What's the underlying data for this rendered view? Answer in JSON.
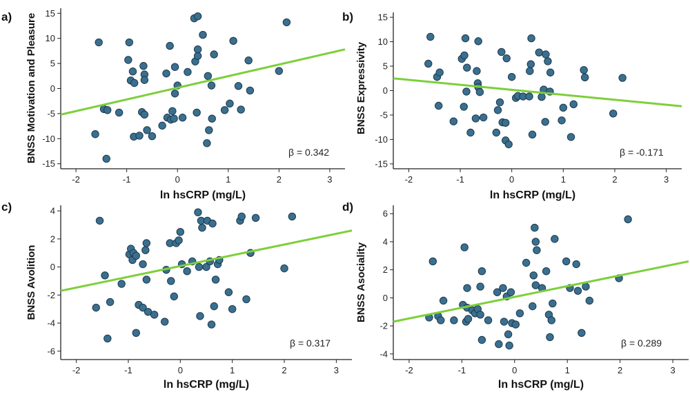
{
  "chart_data": [
    {
      "type": "scatter",
      "panel": "a)",
      "ylabel": "BNSS Motivation and Pleasure",
      "xlabel": "ln hsCRP (mg/L)",
      "xlim": [
        -2.3,
        3.3
      ],
      "ylim": [
        -16,
        16
      ],
      "xticks": [
        -2,
        -1,
        0,
        1,
        2,
        3
      ],
      "yticks": [
        -15,
        -10,
        -5,
        0,
        5,
        10,
        15
      ],
      "annotation": "β = 0.342",
      "fit_line": {
        "x": [
          -2.3,
          3.3
        ],
        "y": [
          -5.2,
          7.8
        ]
      },
      "points": [
        [
          -1.55,
          9.2
        ],
        [
          -1.62,
          -9.1
        ],
        [
          -1.45,
          -4.1
        ],
        [
          -1.38,
          -4.3
        ],
        [
          -1.4,
          -14
        ],
        [
          -1.15,
          -4.8
        ],
        [
          -0.95,
          9.2
        ],
        [
          -0.97,
          5.7
        ],
        [
          -0.92,
          1.6
        ],
        [
          -0.88,
          3.4
        ],
        [
          -0.85,
          1.1
        ],
        [
          -0.86,
          -9.6
        ],
        [
          -0.75,
          -9.4
        ],
        [
          -0.7,
          -4.7
        ],
        [
          -0.65,
          -5.2
        ],
        [
          -0.67,
          4.5
        ],
        [
          -0.65,
          2.8
        ],
        [
          -0.65,
          1.7
        ],
        [
          -0.6,
          -8.3
        ],
        [
          -0.5,
          -9.5
        ],
        [
          -0.3,
          -7.4
        ],
        [
          -0.22,
          3.0
        ],
        [
          -0.2,
          -5.8
        ],
        [
          -0.15,
          8.5
        ],
        [
          -0.13,
          -6.2
        ],
        [
          -0.1,
          -4.5
        ],
        [
          -0.07,
          -6.0
        ],
        [
          -0.05,
          -1.0
        ],
        [
          -0.05,
          4.3
        ],
        [
          0.0,
          0.6
        ],
        [
          0.1,
          -5.8
        ],
        [
          0.2,
          3.3
        ],
        [
          0.33,
          14.0
        ],
        [
          0.4,
          14.4
        ],
        [
          0.35,
          5.4
        ],
        [
          0.4,
          6.5
        ],
        [
          0.4,
          7.8
        ],
        [
          0.38,
          -4.8
        ],
        [
          0.5,
          10.7
        ],
        [
          0.58,
          -10.9
        ],
        [
          0.6,
          2.5
        ],
        [
          0.62,
          -8.3
        ],
        [
          0.67,
          0.6
        ],
        [
          0.68,
          -6.0
        ],
        [
          0.72,
          6.8
        ],
        [
          0.93,
          -4.3
        ],
        [
          1.03,
          -3.0
        ],
        [
          1.1,
          9.5
        ],
        [
          1.2,
          0.5
        ],
        [
          1.25,
          -4.2
        ],
        [
          1.4,
          5.6
        ],
        [
          1.43,
          -0.4
        ],
        [
          2.0,
          3.5
        ],
        [
          2.15,
          13.2
        ]
      ]
    },
    {
      "type": "scatter",
      "panel": "b)",
      "ylabel": "BNSS Expressivity",
      "xlabel": "ln hsCRP (mg/L)",
      "xlim": [
        -2.3,
        3.3
      ],
      "ylim": [
        -16,
        16
      ],
      "xticks": [
        -2,
        -1,
        0,
        1,
        2,
        3
      ],
      "yticks": [
        -15,
        -10,
        -5,
        0,
        5,
        10,
        15
      ],
      "annotation": "β = -0.171",
      "fit_line": {
        "x": [
          -2.3,
          3.3
        ],
        "y": [
          2.5,
          -3.2
        ]
      },
      "points": [
        [
          -1.62,
          5.5
        ],
        [
          -1.58,
          11.0
        ],
        [
          -1.45,
          2.8
        ],
        [
          -1.4,
          3.7
        ],
        [
          -1.42,
          -3.1
        ],
        [
          -1.13,
          -6.3
        ],
        [
          -0.97,
          6.5
        ],
        [
          -0.92,
          7.2
        ],
        [
          -0.9,
          10.7
        ],
        [
          -0.88,
          -0.2
        ],
        [
          -0.87,
          4.7
        ],
        [
          -0.93,
          -3.3
        ],
        [
          -0.8,
          -8.6
        ],
        [
          -0.7,
          -5.7
        ],
        [
          -0.65,
          10.1
        ],
        [
          -0.68,
          4.0
        ],
        [
          -0.66,
          1.5
        ],
        [
          -0.65,
          0.7
        ],
        [
          -0.62,
          -0.3
        ],
        [
          -0.55,
          -5.5
        ],
        [
          -0.3,
          -8.6
        ],
        [
          -0.27,
          -4.0
        ],
        [
          -0.23,
          -2.4
        ],
        [
          -0.18,
          -6.5
        ],
        [
          -0.2,
          7.9
        ],
        [
          -0.12,
          -6.6
        ],
        [
          -0.12,
          -10.2
        ],
        [
          -0.06,
          -11.0
        ],
        [
          -0.1,
          6.6
        ],
        [
          0.0,
          2.8
        ],
        [
          0.08,
          -1.5
        ],
        [
          0.12,
          -1.1
        ],
        [
          0.22,
          -1.2
        ],
        [
          0.34,
          -1.2
        ],
        [
          0.38,
          10.7
        ],
        [
          0.35,
          4.0
        ],
        [
          0.37,
          5.4
        ],
        [
          0.4,
          -9.0
        ],
        [
          0.53,
          7.8
        ],
        [
          0.58,
          -1.3
        ],
        [
          0.62,
          0.2
        ],
        [
          0.65,
          -6.4
        ],
        [
          0.66,
          7.4
        ],
        [
          0.7,
          6.0
        ],
        [
          0.74,
          -0.2
        ],
        [
          0.75,
          3.7
        ],
        [
          0.97,
          -6.1
        ],
        [
          1.0,
          -3.5
        ],
        [
          1.15,
          -9.5
        ],
        [
          1.2,
          -2.8
        ],
        [
          1.4,
          4.2
        ],
        [
          1.42,
          2.7
        ],
        [
          1.97,
          -4.7
        ],
        [
          2.15,
          2.6
        ]
      ]
    },
    {
      "type": "scatter",
      "panel": "c)",
      "ylabel": "BNSS Avolition",
      "xlabel": "ln hsCRP (mg/L)",
      "xlim": [
        -2.3,
        3.3
      ],
      "ylim": [
        -6.6,
        4.4
      ],
      "xticks": [
        -2,
        -1,
        0,
        1,
        2,
        3
      ],
      "yticks": [
        -6,
        -4,
        -2,
        0,
        2,
        4
      ],
      "annotation": "β = 0.317",
      "fit_line": {
        "x": [
          -2.3,
          3.3
        ],
        "y": [
          -1.7,
          2.6
        ]
      },
      "points": [
        [
          -1.62,
          -2.9
        ],
        [
          -1.55,
          3.3
        ],
        [
          -1.45,
          -0.6
        ],
        [
          -1.4,
          -5.1
        ],
        [
          -1.35,
          -2.5
        ],
        [
          -1.13,
          -1.2
        ],
        [
          -0.98,
          0.9
        ],
        [
          -0.95,
          1.3
        ],
        [
          -0.92,
          0.5
        ],
        [
          -0.9,
          1.0
        ],
        [
          -0.85,
          0.8
        ],
        [
          -0.85,
          -4.7
        ],
        [
          -0.8,
          -2.7
        ],
        [
          -0.72,
          -2.9
        ],
        [
          -0.72,
          0.2
        ],
        [
          -0.65,
          1.7
        ],
        [
          -0.67,
          1.2
        ],
        [
          -0.65,
          -0.9
        ],
        [
          -0.62,
          -3.2
        ],
        [
          -0.5,
          -3.4
        ],
        [
          -0.3,
          -3.9
        ],
        [
          -0.27,
          -0.2
        ],
        [
          -0.2,
          1.7
        ],
        [
          -0.18,
          -1.0
        ],
        [
          -0.12,
          -2.1
        ],
        [
          -0.08,
          1.7
        ],
        [
          -0.03,
          1.9
        ],
        [
          0.0,
          2.5
        ],
        [
          0.03,
          0.2
        ],
        [
          0.13,
          -0.3
        ],
        [
          0.23,
          0.4
        ],
        [
          0.34,
          3.9
        ],
        [
          0.36,
          0.0
        ],
        [
          0.4,
          3.3
        ],
        [
          0.38,
          -3.5
        ],
        [
          0.42,
          2.8
        ],
        [
          0.5,
          0.0
        ],
        [
          0.52,
          3.3
        ],
        [
          0.57,
          0.4
        ],
        [
          0.6,
          -4.1
        ],
        [
          0.62,
          3.1
        ],
        [
          0.65,
          -2.8
        ],
        [
          0.68,
          -0.9
        ],
        [
          0.72,
          0.2
        ],
        [
          0.75,
          0.5
        ],
        [
          0.93,
          -1.8
        ],
        [
          1.0,
          -3.0
        ],
        [
          1.15,
          3.3
        ],
        [
          1.18,
          3.6
        ],
        [
          1.27,
          -2.3
        ],
        [
          1.35,
          1.0
        ],
        [
          1.45,
          3.5
        ],
        [
          2.0,
          -0.1
        ],
        [
          2.15,
          3.6
        ]
      ]
    },
    {
      "type": "scatter",
      "panel": "d)",
      "ylabel": "BNSS Asociality",
      "xlabel": "ln hsCRP (mg/L)",
      "xlim": [
        -2.3,
        3.3
      ],
      "ylim": [
        -4.4,
        6.6
      ],
      "xticks": [
        -2,
        -1,
        0,
        1,
        2,
        3
      ],
      "yticks": [
        -4,
        -2,
        0,
        2,
        4,
        6
      ],
      "annotation": "β = 0.289",
      "fit_line": {
        "x": [
          -2.3,
          3.3
        ],
        "y": [
          -1.7,
          2.6
        ]
      },
      "points": [
        [
          -1.62,
          -1.4
        ],
        [
          -1.55,
          2.6
        ],
        [
          -1.45,
          -1.3
        ],
        [
          -1.4,
          -1.6
        ],
        [
          -1.35,
          -0.2
        ],
        [
          -1.15,
          -1.6
        ],
        [
          -0.98,
          -0.5
        ],
        [
          -0.95,
          3.6
        ],
        [
          -0.92,
          -1.7
        ],
        [
          -0.9,
          -0.7
        ],
        [
          -0.88,
          -1.5
        ],
        [
          -0.9,
          0.7
        ],
        [
          -0.8,
          -0.9
        ],
        [
          -0.75,
          -1.1
        ],
        [
          -0.7,
          -0.8
        ],
        [
          -0.65,
          0.8
        ],
        [
          -0.65,
          -1.2
        ],
        [
          -0.62,
          1.9
        ],
        [
          -0.62,
          -3.0
        ],
        [
          -0.5,
          -1.6
        ],
        [
          -0.33,
          0.4
        ],
        [
          -0.3,
          -3.3
        ],
        [
          -0.22,
          0.7
        ],
        [
          -0.2,
          -1.7
        ],
        [
          -0.15,
          0.1
        ],
        [
          -0.12,
          -2.6
        ],
        [
          -0.1,
          -3.4
        ],
        [
          -0.07,
          0.4
        ],
        [
          -0.05,
          -1.8
        ],
        [
          0.02,
          -1.9
        ],
        [
          0.1,
          -1.1
        ],
        [
          0.22,
          2.5
        ],
        [
          0.34,
          -0.6
        ],
        [
          0.36,
          1.6
        ],
        [
          0.38,
          5.0
        ],
        [
          0.4,
          4.0
        ],
        [
          0.4,
          0.9
        ],
        [
          0.42,
          3.4
        ],
        [
          0.52,
          0.7
        ],
        [
          0.6,
          1.9
        ],
        [
          0.65,
          -1.2
        ],
        [
          0.67,
          -2.8
        ],
        [
          0.7,
          -1.6
        ],
        [
          0.72,
          -0.4
        ],
        [
          0.76,
          4.2
        ],
        [
          0.98,
          2.6
        ],
        [
          1.05,
          0.7
        ],
        [
          1.17,
          2.4
        ],
        [
          1.2,
          0.5
        ],
        [
          1.27,
          -2.5
        ],
        [
          1.35,
          0.8
        ],
        [
          1.42,
          -0.2
        ],
        [
          1.98,
          1.4
        ],
        [
          2.15,
          5.6
        ]
      ]
    }
  ]
}
